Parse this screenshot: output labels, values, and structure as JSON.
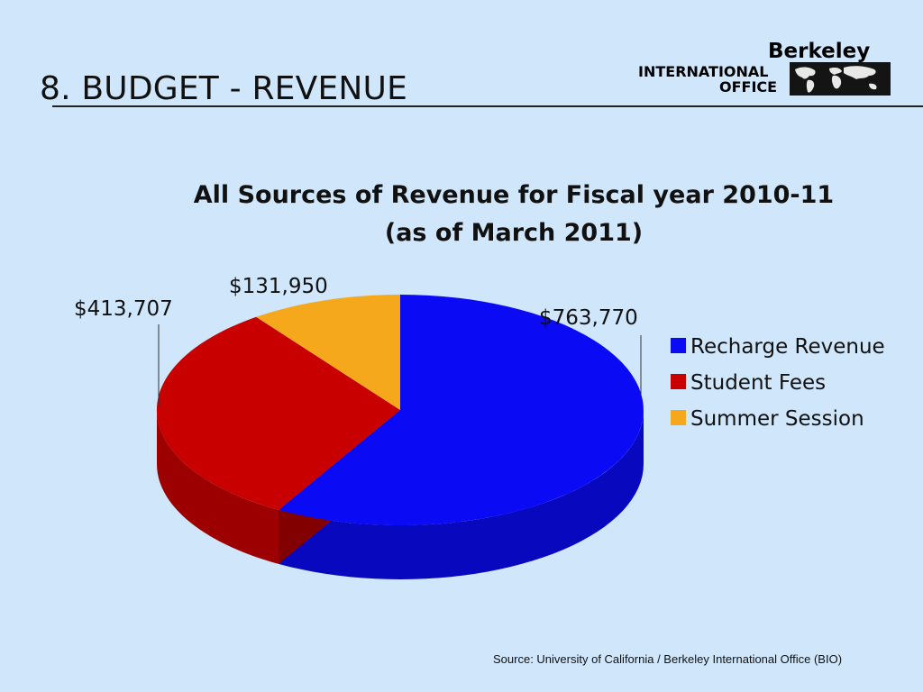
{
  "slide": {
    "title": "8. BUDGET - REVENUE",
    "source": "Source:  University of California / Berkeley International Office (BIO)"
  },
  "logo": {
    "brand": "Berkeley",
    "line1": "INTERNATIONAL",
    "line2": "OFFICE"
  },
  "chart_data": {
    "type": "pie",
    "title": "All Sources of Revenue for Fiscal year 2010-11",
    "subtitle": "(as of March 2011)",
    "categories": [
      "Recharge Revenue",
      "Student Fees",
      "Summer Session"
    ],
    "values": [
      763770,
      413707,
      131950
    ],
    "data_labels": [
      "$763,770",
      "$413,707",
      "$131,950"
    ],
    "colors": [
      "#0a0af5",
      "#c80000",
      "#f5a81c"
    ],
    "legend_position": "right",
    "style": "3d"
  }
}
